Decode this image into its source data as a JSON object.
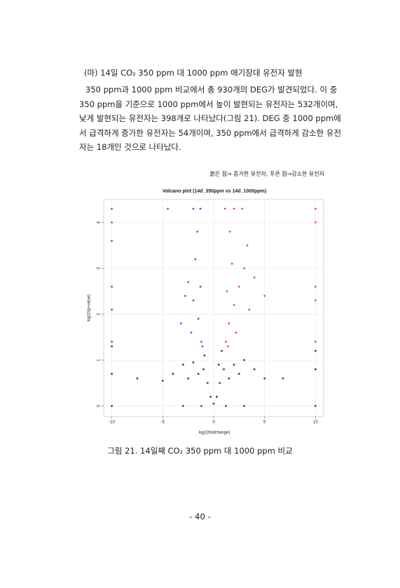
{
  "heading": "(마) 14일 CO₂ 350 ppm 대 1000 ppm 애기장대 유전자 발현",
  "paragraph": [
    "350 ppm과 1000 ppm 비교에서 총 930개의 DEG가 발견되었다. 이 중",
    "350 ppm을 기준으로 1000 ppm에서 높이 발현되는 유전자는 532개이며,",
    "낮게 발현되는 유전자는 398개로 나타났다(그림 21). DEG 중 1000 ppm에",
    "서 급격하게 증가한 유전자는 54개이며, 350 ppm에서 급격하게 감소한 유전",
    "자는 18개인 것으로 나타났다."
  ],
  "figure_note": "붉은 점⇒ 증가한 유전자, 푸른 점⇒감소한 유전자",
  "chart_data": {
    "type": "scatter",
    "title": "Volcano plot (14d_350ppm vs 14d_1000ppm)",
    "x_label": "log2(foldchange)",
    "y_label": "log10(p-value)",
    "xlim": [
      -10.8,
      10.8
    ],
    "ylim": [
      -0.23,
      4.5
    ],
    "xticks": [
      -10,
      -5,
      0,
      5,
      10
    ],
    "yticks": [
      0,
      1,
      2,
      3,
      4
    ],
    "grid": true,
    "series": [
      {
        "color": "#111111",
        "x": [
          0,
          0.3,
          -0.3,
          0.6,
          -0.6,
          1,
          -1,
          1.5,
          -1.5,
          2,
          -2,
          2.5,
          -2.5,
          3,
          -3,
          4,
          -4,
          5,
          -5,
          6.8,
          -7.5,
          -10,
          -10,
          10,
          10,
          -1.2,
          1.2,
          -3,
          3,
          10,
          -10,
          0.8,
          -0.9,
          0.5
        ],
        "values": [
          0.05,
          0.2,
          0.2,
          0.5,
          0.5,
          0.8,
          0.8,
          0.6,
          0.7,
          0.9,
          0.95,
          0.7,
          0.6,
          1,
          0.9,
          0.8,
          0.7,
          0.6,
          0.55,
          0.6,
          0.6,
          0.7,
          1.3,
          0.8,
          1.2,
          0,
          0,
          0,
          0,
          0,
          0,
          1.2,
          1.1,
          0.9
        ]
      },
      {
        "color": "#e0262b",
        "x": [
          1.2,
          1.5,
          2,
          2.5,
          3,
          1.3,
          1.8,
          2.2,
          3.5,
          4,
          1.6,
          2,
          2.8,
          1.1,
          3.3,
          10,
          10,
          10,
          10,
          10,
          5,
          1.4
        ],
        "values": [
          1.4,
          1.8,
          2.2,
          2.6,
          3,
          2.5,
          3.1,
          1.6,
          2.1,
          2.8,
          3.8,
          4.3,
          4.3,
          4.3,
          3.5,
          1.4,
          2.3,
          2.6,
          4.0,
          4.3,
          2.4,
          1.3
        ]
      },
      {
        "color": "#2a35c8",
        "x": [
          -1.2,
          -1.5,
          -2,
          -2.5,
          -1.8,
          -1.3,
          -2.2,
          -2.8,
          -1.6,
          -2,
          -1.3,
          -10,
          -10,
          -10,
          -10,
          -10,
          -10,
          -3.2,
          -1.1,
          -4.5
        ],
        "values": [
          1.4,
          1.9,
          2.3,
          2.7,
          3.2,
          2.6,
          1.6,
          2.4,
          3.8,
          4.3,
          4.3,
          2.6,
          2.1,
          1.4,
          3.6,
          4.0,
          4.3,
          1.8,
          1.3,
          4.3
        ]
      }
    ]
  },
  "caption": "그림 21. 14일째 CO₂ 350 ppm 대 1000 ppm 비교",
  "page_number": "- 40 -"
}
